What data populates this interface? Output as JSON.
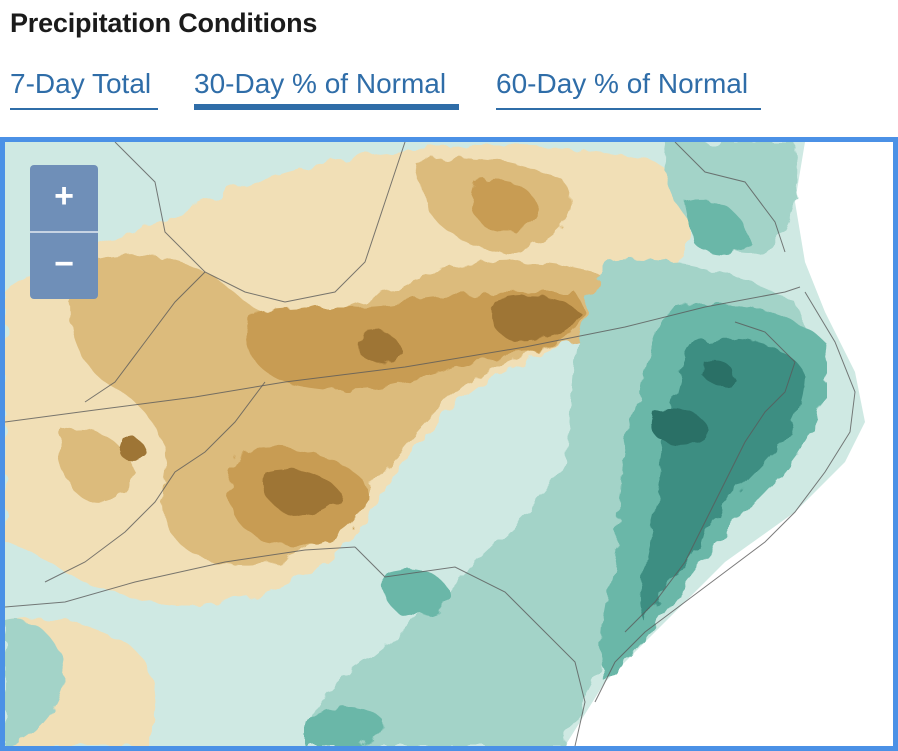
{
  "header": {
    "title": "Precipitation Conditions"
  },
  "tabs": [
    {
      "label": "7-Day Total",
      "active": false
    },
    {
      "label": "30-Day % of Normal",
      "active": true
    },
    {
      "label": "60-Day % of Normal",
      "active": false
    }
  ],
  "map": {
    "zoom_in_label": "+",
    "zoom_out_label": "−",
    "colors": {
      "dry_dark": "#9e7436",
      "dry": "#c89c52",
      "dry_mid": "#dcbb7c",
      "dry_light": "#f1dfb6",
      "near_normal": "#cfe9e3",
      "wet_light": "#a3d3c8",
      "wet": "#6ab7a8",
      "wet_dark": "#3e8e82",
      "wet_darkest": "#2a6f66",
      "frame": "#4b91e6",
      "tab_text": "#2f6da8"
    }
  }
}
